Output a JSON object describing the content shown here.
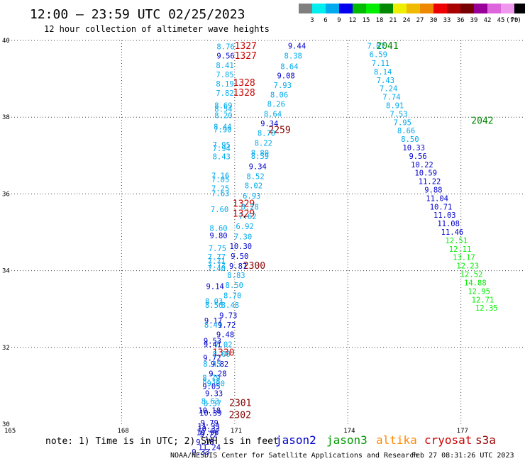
{
  "title": "12:00 — 23:59 UTC 02/25/2023",
  "subtitle": "12 hour collection of altimeter wave heights",
  "legend": {
    "unit": "(ft)",
    "labels": [
      "3",
      "6",
      "9",
      "12",
      "15",
      "18",
      "21",
      "24",
      "27",
      "30",
      "33",
      "36",
      "39",
      "42",
      "45",
      "70"
    ],
    "colors": [
      "#7f7f7f",
      "#00eeee",
      "#00aaee",
      "#0000ee",
      "#00bb00",
      "#00ee00",
      "#008800",
      "#eeee00",
      "#eebb00",
      "#ee8800",
      "#ee0000",
      "#aa0000",
      "#770000",
      "#990099",
      "#dd66dd",
      "#ee99ee",
      "#000000"
    ]
  },
  "note": "note: 1) Time is in UTC; 2) SWH is in feet",
  "satellites": [
    {
      "name": "jason2",
      "color": "#0000cc"
    },
    {
      "name": "jason3",
      "color": "#009900"
    },
    {
      "name": "altika",
      "color": "#ff8800"
    },
    {
      "name": "cryosat",
      "color": "#cc0000"
    },
    {
      "name": "s3a",
      "color": "#990000"
    }
  ],
  "credit": "NOAA/NESDIS Center for Satellite Applications and Research",
  "timestamp": "Feb 27 08:31:26 UTC 2023",
  "chart_data": {
    "type": "scatter",
    "xlim": [
      165,
      178.7
    ],
    "ylim": [
      30,
      40
    ],
    "xticks": [
      165,
      168,
      171,
      174,
      177
    ],
    "yticks": [
      30,
      32,
      34,
      36,
      38,
      40
    ],
    "grid": true,
    "series": [
      {
        "points": [
          [
            171.29,
            39.84,
            "1327",
            "#cc0000"
          ],
          [
            171.29,
            39.58,
            "1327",
            "#cc0000"
          ],
          [
            171.25,
            38.88,
            "1328",
            "#cc0000"
          ],
          [
            171.25,
            38.62,
            "1328",
            "#cc0000"
          ],
          [
            171.24,
            35.73,
            "1329",
            "#cc0000"
          ],
          [
            171.24,
            35.47,
            "1329",
            "#cc0000"
          ],
          [
            170.7,
            31.85,
            "1330",
            "#cc0000"
          ],
          [
            171.52,
            34.11,
            "2300",
            "#880000"
          ],
          [
            172.19,
            37.65,
            "2259",
            "#880000"
          ],
          [
            171.15,
            30.54,
            "2301",
            "#880000"
          ],
          [
            171.14,
            30.22,
            "2302",
            "#880000"
          ],
          [
            175.05,
            39.84,
            "2041",
            "#008800"
          ],
          [
            177.57,
            37.89,
            "2042",
            "#008800"
          ],
          [
            171.26,
            35.4,
            "",
            "#000000"
          ]
        ]
      },
      {
        "points": [
          [
            170.76,
            39.82,
            "8.76",
            "#00aaee"
          ],
          [
            170.76,
            39.58,
            "9.56",
            "#0000cc"
          ],
          [
            170.74,
            39.33,
            "8.41",
            "#00aaee"
          ],
          [
            170.74,
            39.09,
            "7.85",
            "#00aaee"
          ],
          [
            170.74,
            38.85,
            "8.19",
            "#00aaee"
          ],
          [
            170.74,
            38.61,
            "7.82",
            "#00aaee"
          ],
          [
            170.7,
            38.29,
            "8.69",
            "#00aaee"
          ],
          [
            170.7,
            38.2,
            "8.54",
            "#00aaee"
          ],
          [
            170.7,
            38.03,
            "8.20",
            "#00aaee"
          ],
          [
            170.68,
            37.74,
            "8.44",
            "#00aaee"
          ],
          [
            170.68,
            37.66,
            "7.90",
            "#00aaee"
          ],
          [
            170.65,
            37.26,
            "7.95",
            "#00aaee"
          ],
          [
            170.65,
            37.17,
            "7.94",
            "#00aaee"
          ],
          [
            170.65,
            36.96,
            "8.43",
            "#00aaee"
          ],
          [
            170.62,
            36.46,
            "7.16",
            "#00aaee"
          ],
          [
            170.62,
            36.36,
            "7.05",
            "#00aaee"
          ],
          [
            170.62,
            36.13,
            "7.25",
            "#00aaee"
          ],
          [
            170.62,
            36.0,
            "7.63",
            "#00aaee"
          ],
          [
            170.6,
            35.58,
            "7.60",
            "#00aaee"
          ],
          [
            170.57,
            35.09,
            "8.60",
            "#00aaee"
          ],
          [
            170.57,
            34.9,
            "9.80",
            "#0000cc"
          ],
          [
            170.54,
            34.57,
            "7.75",
            "#00aaee"
          ],
          [
            170.52,
            34.34,
            "7.77",
            "#00aaee"
          ],
          [
            170.52,
            34.23,
            "7.71",
            "#00aaee"
          ],
          [
            170.52,
            34.13,
            "7.72",
            "#00aaee"
          ],
          [
            170.52,
            34.05,
            "7.40",
            "#00aaee"
          ],
          [
            170.48,
            33.58,
            "9.14",
            "#0000cc"
          ],
          [
            170.45,
            33.19,
            "8.03",
            "#00aaee"
          ],
          [
            170.45,
            33.09,
            "8.56",
            "#00aaee"
          ],
          [
            170.43,
            32.68,
            "9.17",
            "#0000cc"
          ],
          [
            170.43,
            32.57,
            "8.41",
            "#00aaee"
          ],
          [
            170.41,
            32.15,
            "9.53",
            "#0000cc"
          ],
          [
            170.41,
            32.06,
            "9.41",
            "#0000cc"
          ],
          [
            170.4,
            31.71,
            "9.72",
            "#0000cc"
          ],
          [
            170.4,
            31.55,
            "8.45",
            "#00aaee"
          ],
          [
            170.38,
            31.19,
            "8.79",
            "#00aaee"
          ],
          [
            170.38,
            31.1,
            "8.38",
            "#00aaee"
          ],
          [
            170.38,
            30.97,
            "9.05",
            "#0000cc"
          ],
          [
            170.35,
            30.58,
            "8.63",
            "#00aaee"
          ],
          [
            170.33,
            30.34,
            "10.18",
            "#0000cc"
          ],
          [
            170.31,
            29.93,
            "11.33",
            "#0000cc"
          ],
          [
            170.31,
            29.86,
            "10.33",
            "#0000cc"
          ],
          [
            170.31,
            29.71,
            "9.72",
            "#0000cc"
          ],
          [
            170.33,
            29.38,
            "11.24",
            "#0000cc"
          ]
        ]
      },
      {
        "points": [
          [
            172.65,
            39.84,
            "9.44",
            "#0000cc"
          ],
          [
            172.55,
            39.58,
            "8.38",
            "#00aaee"
          ],
          [
            172.45,
            39.31,
            "8.64",
            "#00aaee"
          ],
          [
            172.36,
            39.07,
            "9.08",
            "#0000cc"
          ],
          [
            172.27,
            38.82,
            "7.93",
            "#00aaee"
          ],
          [
            172.18,
            38.57,
            "8.06",
            "#00aaee"
          ],
          [
            172.1,
            38.33,
            "8.26",
            "#00aaee"
          ],
          [
            172.01,
            38.07,
            "8.64",
            "#00aaee"
          ],
          [
            171.92,
            37.82,
            "9.34",
            "#0000cc"
          ],
          [
            171.84,
            37.57,
            "8.70",
            "#00aaee"
          ],
          [
            171.76,
            37.31,
            "8.22",
            "#00aaee"
          ],
          [
            171.67,
            37.05,
            "8.80",
            "#00aaee"
          ],
          [
            171.67,
            36.97,
            "8.59",
            "#00aaee"
          ],
          [
            171.61,
            36.7,
            "9.34",
            "#0000cc"
          ],
          [
            171.55,
            36.44,
            "8.52",
            "#00aaee"
          ],
          [
            171.5,
            36.2,
            "8.02",
            "#00aaee"
          ],
          [
            171.45,
            35.93,
            "6.93",
            "#00aaee"
          ],
          [
            171.4,
            35.65,
            "8.28",
            "#00aaee"
          ],
          [
            171.34,
            35.4,
            "7.62",
            "#00aaee"
          ],
          [
            171.27,
            35.14,
            "6.92",
            "#00aaee"
          ],
          [
            171.22,
            34.87,
            "7.30",
            "#00aaee"
          ],
          [
            171.16,
            34.62,
            "10.30",
            "#0000cc"
          ],
          [
            171.13,
            34.36,
            "9.50",
            "#0000cc"
          ],
          [
            171.09,
            34.1,
            "9.87",
            "#0000cc"
          ],
          [
            171.04,
            33.86,
            "8.83",
            "#00aaee"
          ],
          [
            170.99,
            33.6,
            "8.50",
            "#00aaee"
          ],
          [
            170.94,
            33.34,
            "8.70",
            "#00aaee"
          ],
          [
            170.88,
            33.09,
            "8.48",
            "#00aaee"
          ],
          [
            170.83,
            32.82,
            "9.73",
            "#0000cc"
          ],
          [
            170.79,
            32.57,
            "9.72",
            "#0000cc"
          ],
          [
            170.75,
            32.32,
            "9.48",
            "#0000cc"
          ],
          [
            170.7,
            32.06,
            "7.02",
            "#00aaee"
          ],
          [
            170.65,
            31.81,
            "8.00",
            "#00aaee"
          ],
          [
            170.6,
            31.55,
            "9.82",
            "#0000cc"
          ],
          [
            170.55,
            31.3,
            "9.28",
            "#0000cc"
          ],
          [
            170.5,
            31.04,
            "9.30",
            "#00aaee"
          ],
          [
            170.45,
            30.79,
            "9.33",
            "#0000cc"
          ],
          [
            170.41,
            30.53,
            "8.37",
            "#00aaee"
          ],
          [
            170.36,
            30.28,
            "10.39",
            "#0000cc"
          ],
          [
            170.33,
            30.02,
            "9.79",
            "#0000cc"
          ],
          [
            170.28,
            29.77,
            "10.96",
            "#0000cc"
          ],
          [
            170.21,
            29.52,
            "9.18",
            "#0000cc"
          ],
          [
            170.1,
            29.26,
            "9.33",
            "#0000cc"
          ]
        ]
      },
      {
        "points": [
          [
            174.75,
            39.84,
            "7.07",
            "#00aaee"
          ],
          [
            174.81,
            39.62,
            "6.59",
            "#00aaee"
          ],
          [
            174.87,
            39.39,
            "7.11",
            "#00aaee"
          ],
          [
            174.93,
            39.17,
            "8.14",
            "#00aaee"
          ],
          [
            175.0,
            38.95,
            "7.43",
            "#00aaee"
          ],
          [
            175.08,
            38.73,
            "7.24",
            "#00aaee"
          ],
          [
            175.16,
            38.51,
            "7.74",
            "#00aaee"
          ],
          [
            175.25,
            38.29,
            "8.91",
            "#00aaee"
          ],
          [
            175.35,
            38.07,
            "7.53",
            "#00aaee"
          ],
          [
            175.45,
            37.85,
            "7.95",
            "#00aaee"
          ],
          [
            175.55,
            37.63,
            "8.66",
            "#00aaee"
          ],
          [
            175.65,
            37.41,
            "8.50",
            "#00aaee"
          ],
          [
            175.75,
            37.19,
            "10.33",
            "#0000cc"
          ],
          [
            175.86,
            36.97,
            "9.56",
            "#0000cc"
          ],
          [
            175.97,
            36.75,
            "10.22",
            "#0000cc"
          ],
          [
            176.07,
            36.53,
            "10.59",
            "#0000cc"
          ],
          [
            176.17,
            36.31,
            "11.22",
            "#0000cc"
          ],
          [
            176.27,
            36.09,
            "9.88",
            "#0000cc"
          ],
          [
            176.37,
            35.87,
            "11.04",
            "#0000cc"
          ],
          [
            176.47,
            35.65,
            "10.71",
            "#0000cc"
          ],
          [
            176.57,
            35.43,
            "11.03",
            "#0000cc"
          ],
          [
            176.67,
            35.21,
            "11.08",
            "#0000cc"
          ],
          [
            176.77,
            34.99,
            "11.46",
            "#0000cc"
          ],
          [
            176.88,
            34.77,
            "12.51",
            "#00ee00"
          ],
          [
            176.98,
            34.55,
            "12.11",
            "#00ee00"
          ],
          [
            177.08,
            34.33,
            "13.17",
            "#00ee00"
          ],
          [
            177.18,
            34.11,
            "12.23",
            "#00ee00"
          ],
          [
            177.28,
            33.89,
            "12.52",
            "#00ee00"
          ],
          [
            177.38,
            33.67,
            "14.88",
            "#00ee00"
          ],
          [
            177.48,
            33.45,
            "12.95",
            "#00ee00"
          ],
          [
            177.58,
            33.23,
            "12.71",
            "#00ee00"
          ],
          [
            177.68,
            33.01,
            "12.35",
            "#00ee00"
          ]
        ]
      }
    ]
  }
}
